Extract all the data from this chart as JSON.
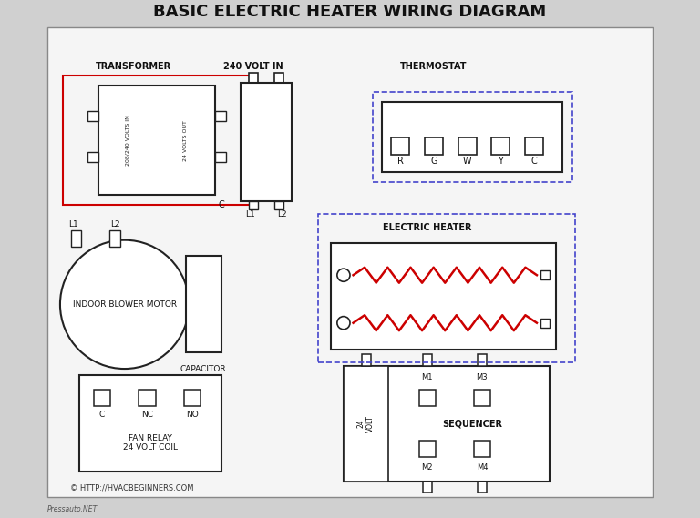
{
  "title": "BASIC ELECTRIC HEATER WIRING DIAGRAM",
  "bg_outer": "#d0d0d0",
  "bg_inner": "#f5f5f5",
  "line_red": "#cc0000",
  "line_black": "#222222",
  "line_blue_dash": "#4444cc",
  "line_red_dash": "#cc0000",
  "box_stroke": "#222222",
  "watermark": "Pressauto.NET",
  "copyright": "© HTTP://HVACBEGINNERS.COM",
  "transformer_label": "TRANSFORMER",
  "transformer_in": "208/240 VOLTS IN",
  "transformer_out": "24 VOLTS OUT",
  "transformer_c": "C",
  "volt240": "240 VOLT IN",
  "thermostat_label": "THERMOSTAT",
  "thermostat_terminals": [
    "R",
    "G",
    "W",
    "Y",
    "C"
  ],
  "electric_heater_label": "ELECTRIC HEATER",
  "blower_label": "INDOOR BLOWER MOTOR",
  "capacitor_label": "CAPACITOR",
  "fan_relay_label": "FAN RELAY\n24 VOLT COIL",
  "fan_relay_terminals": [
    "C",
    "NC",
    "NO"
  ],
  "sequencer_label": "SEQUENCER",
  "sequencer_terminals": [
    "24\nVOLT",
    "M1",
    "M3",
    "M2",
    "M4"
  ],
  "L1": "L1",
  "L2": "L2"
}
